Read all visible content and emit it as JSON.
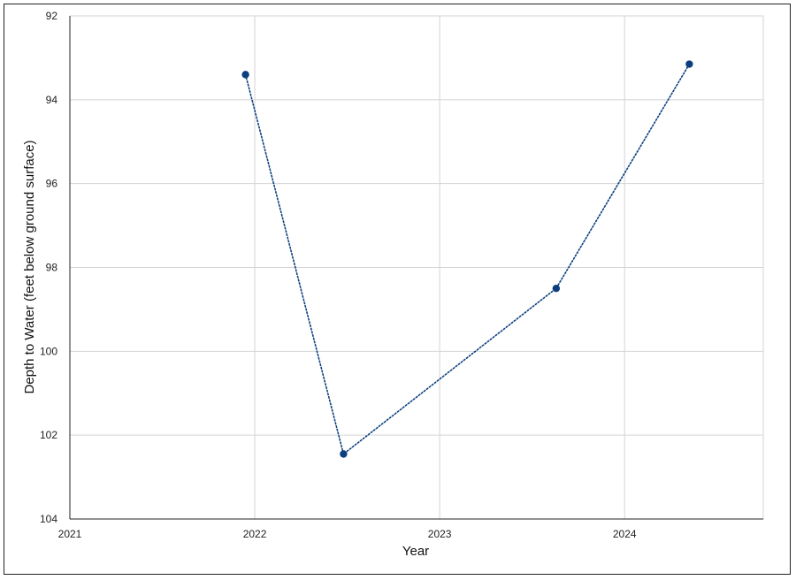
{
  "chart_data": {
    "type": "line",
    "title": "",
    "xlabel": "Year",
    "ylabel": "Depth to Water (feet below ground surface)",
    "xlim": [
      2021,
      2024.75
    ],
    "ylim": [
      92,
      104
    ],
    "y_inverted": true,
    "x_ticks": [
      2021,
      2022,
      2023,
      2024
    ],
    "y_ticks": [
      92,
      94,
      96,
      98,
      100,
      102,
      104
    ],
    "grid": true,
    "line_style": "dotted",
    "colors": {
      "series": "#0b3f7f",
      "grid": "#d4d4d4",
      "axis": "#222222"
    },
    "series": [
      {
        "x": [
          2021.95,
          2022.48,
          2023.63,
          2024.35
        ],
        "y": [
          93.4,
          102.45,
          98.5,
          93.15
        ]
      }
    ]
  }
}
